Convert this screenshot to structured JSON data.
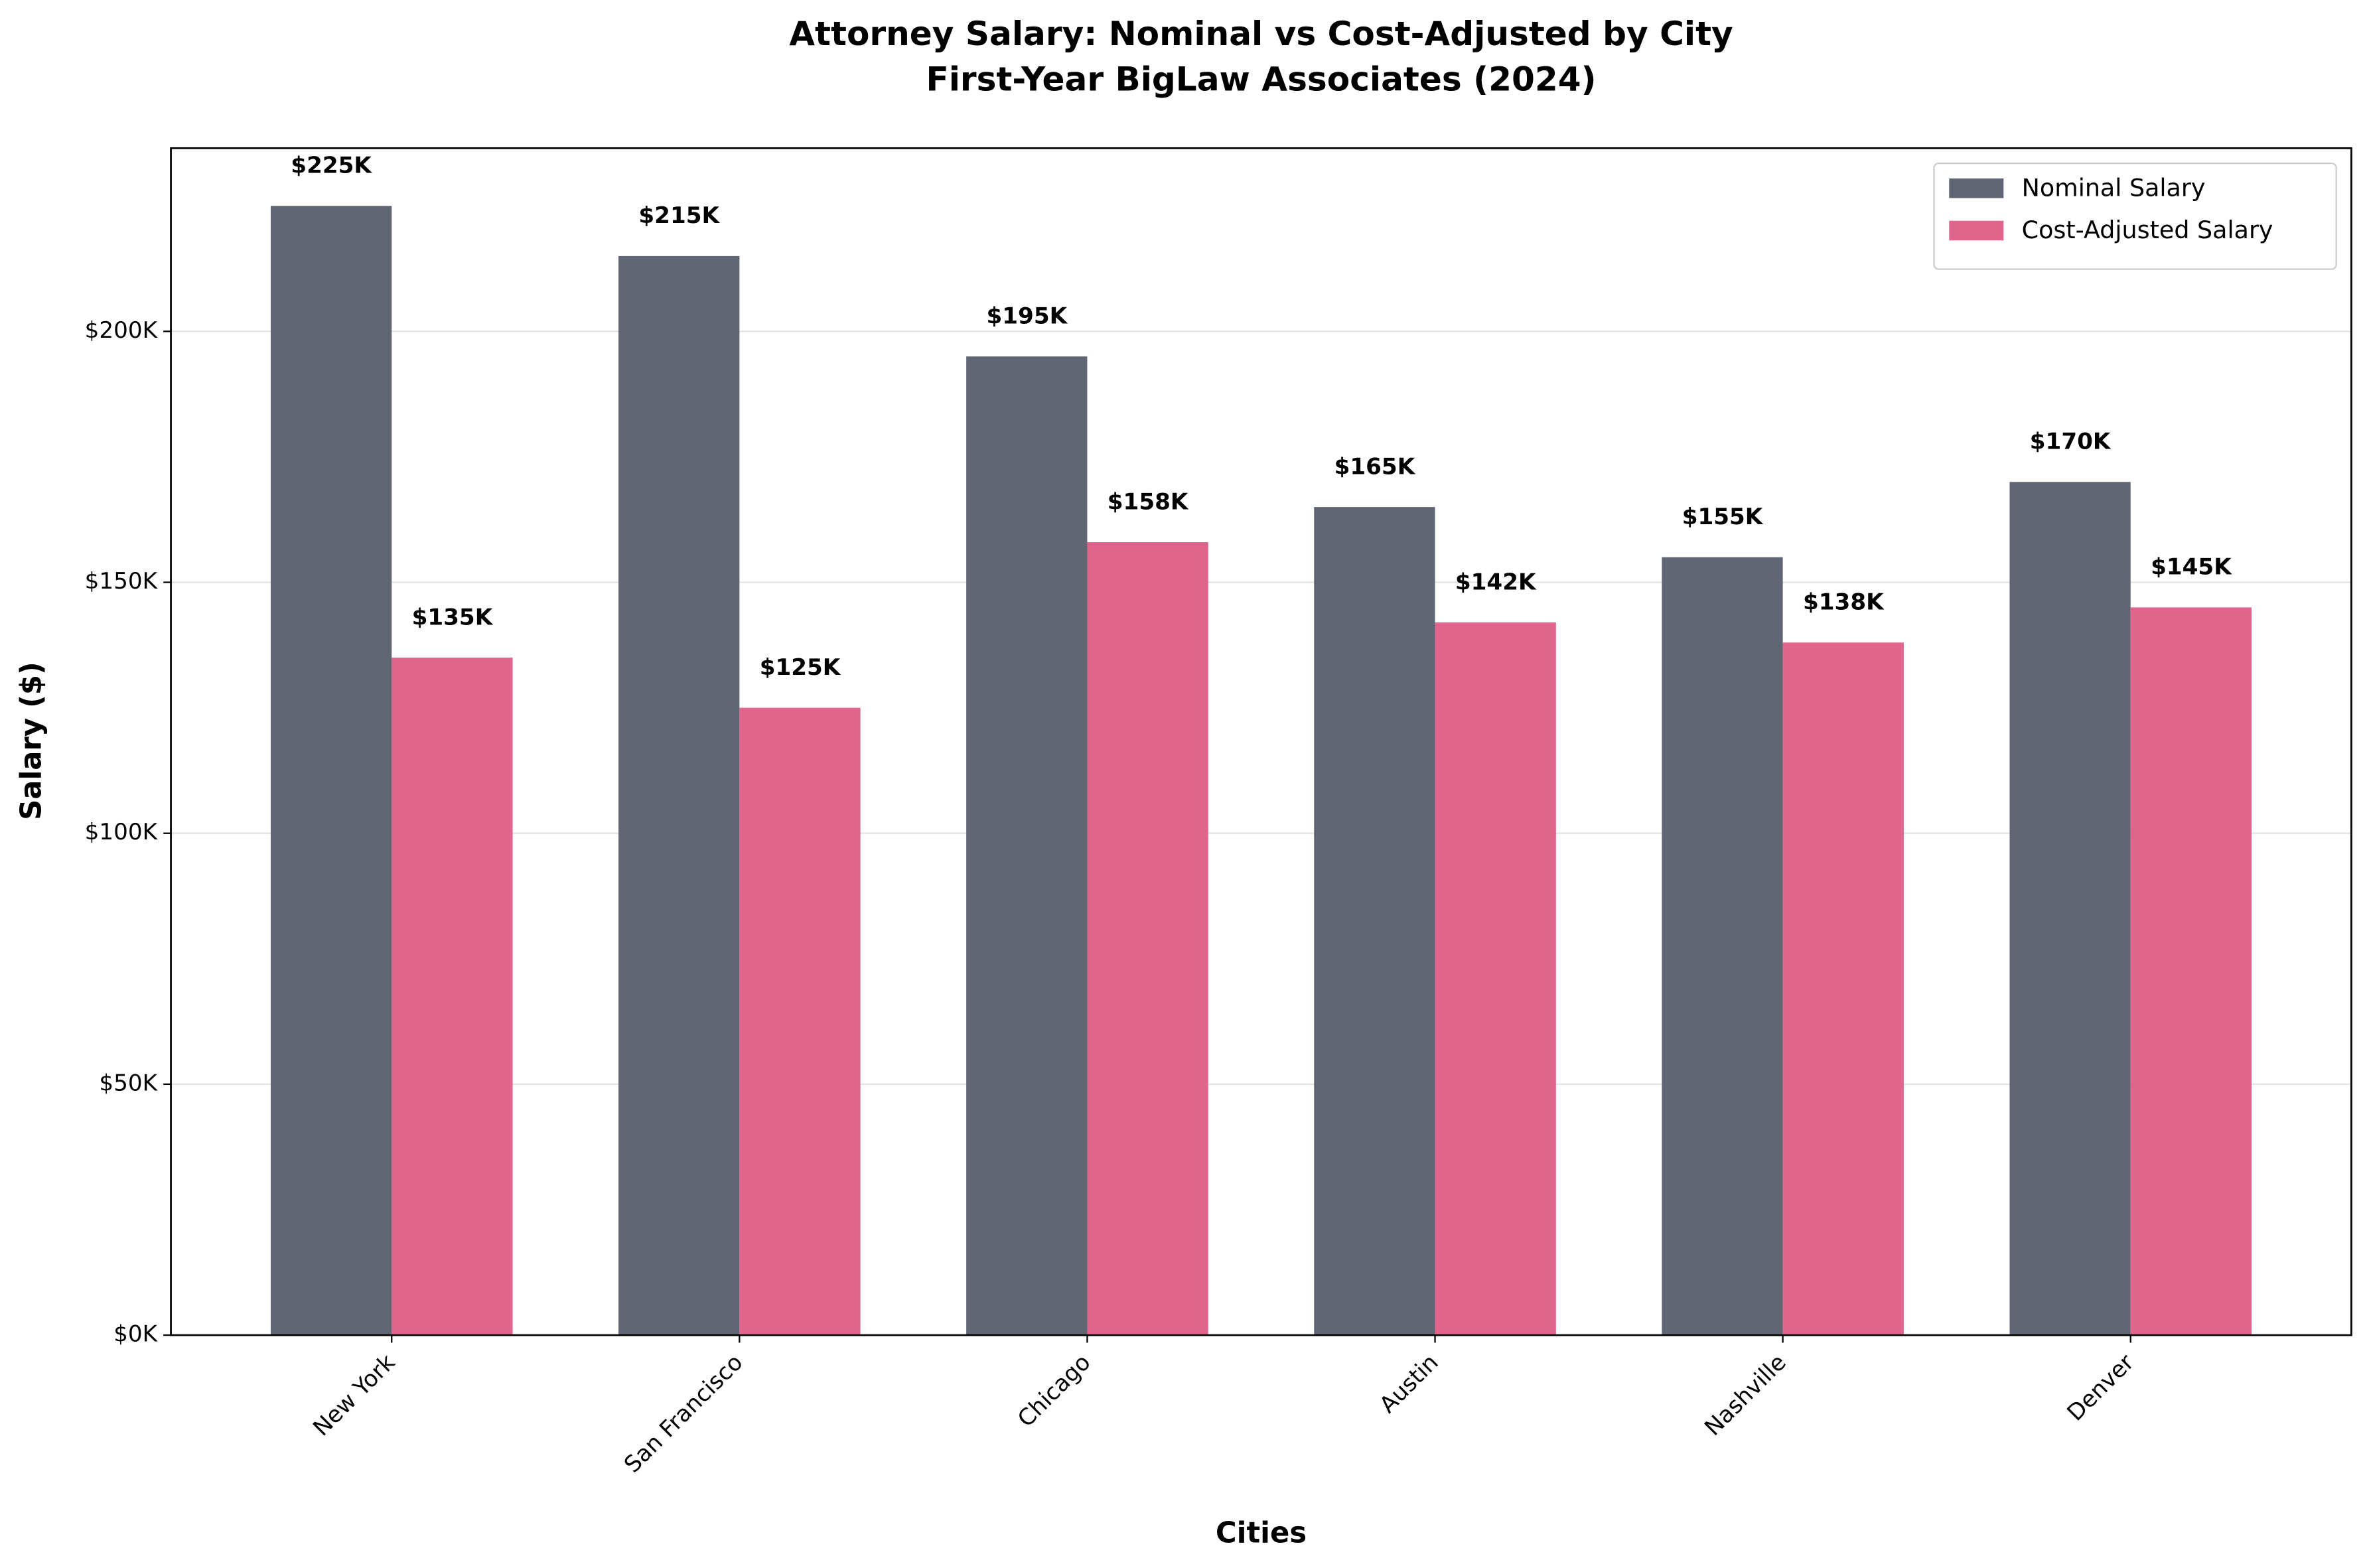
{
  "chart_data": {
    "type": "bar",
    "title": "Attorney Salary: Nominal vs Cost-Adjusted by City",
    "subtitle": "First-Year BigLaw Associates (2024)",
    "x_label": "Cities",
    "y_label": "Salary ($)",
    "categories": [
      "New York",
      "San Francisco",
      "Chicago",
      "Austin",
      "Nashville",
      "Denver"
    ],
    "series": [
      {
        "name": "Nominal Salary",
        "color": "#606674",
        "values": [
          225000,
          215000,
          195000,
          165000,
          155000,
          170000
        ],
        "value_labels": [
          "$225K",
          "$215K",
          "$195K",
          "$165K",
          "$155K",
          "$170K"
        ]
      },
      {
        "name": "Cost-Adjusted Salary",
        "color": "#e0648c",
        "values": [
          135000,
          125000,
          158000,
          142000,
          138000,
          145000
        ],
        "value_labels": [
          "$135K",
          "$125K",
          "$158K",
          "$142K",
          "$138K",
          "$145K"
        ]
      }
    ],
    "ylim": [
      0,
      236500
    ],
    "yticks": [
      {
        "value": 0,
        "label": "$0K"
      },
      {
        "value": 50000,
        "label": "$50K"
      },
      {
        "value": 100000,
        "label": "$100K"
      },
      {
        "value": 150000,
        "label": "$150K"
      },
      {
        "value": 200000,
        "label": "$200K"
      }
    ],
    "grid": true,
    "legend": "upper right"
  }
}
